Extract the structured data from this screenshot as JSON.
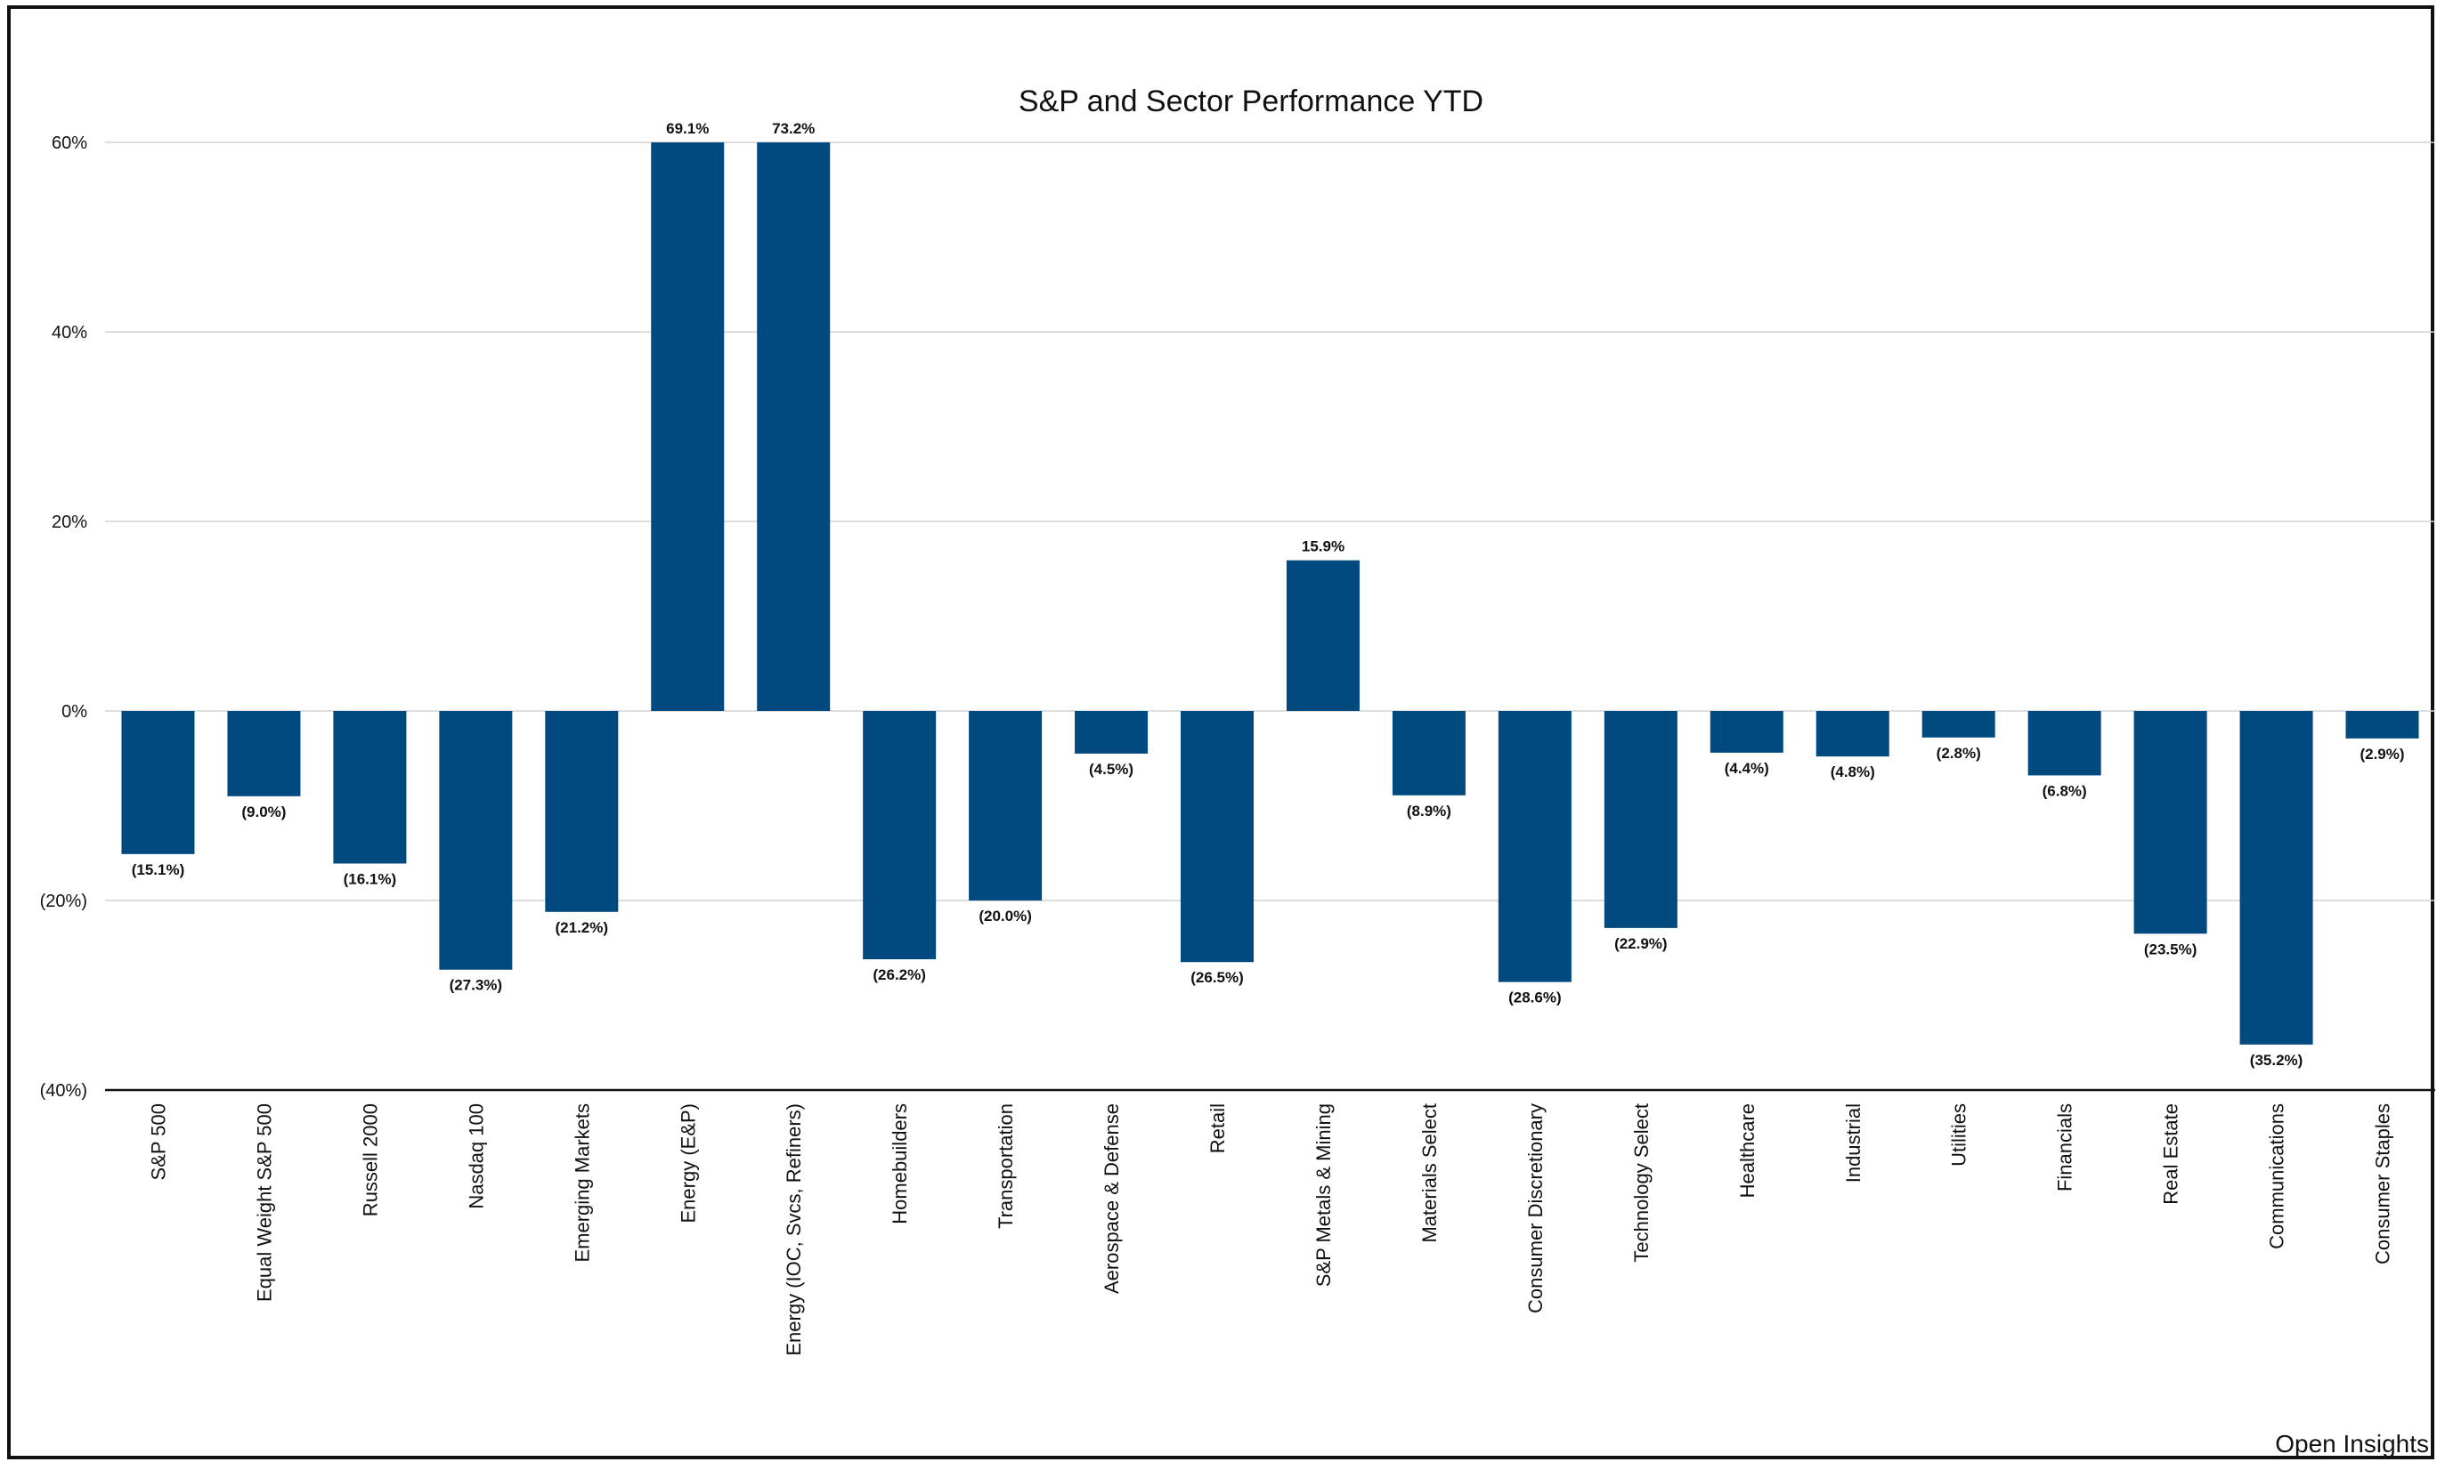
{
  "chart_data": {
    "type": "bar",
    "title": "S&P and Sector Performance YTD",
    "xlabel": "",
    "ylabel": "",
    "ylim": [
      -40,
      60
    ],
    "yticks": [
      60,
      40,
      20,
      0,
      -20,
      -40
    ],
    "ytick_labels": [
      "60%",
      "40%",
      "20%",
      "0%",
      "(20%)",
      "(40%)"
    ],
    "grid": true,
    "bar_color": "#004a7f",
    "categories": [
      "S&P 500",
      "Equal Weight S&P 500",
      "Russell 2000",
      "Nasdaq 100",
      "Emerging Markets",
      "Energy (E&P)",
      "Energy (IOC, Svcs, Refiners)",
      "Homebuilders",
      "Transportation",
      "Aerospace & Defense",
      "Retail",
      "S&P Metals & Mining",
      "Materials Select",
      "Consumer Discretionary",
      "Technology Select",
      "Healthcare",
      "Industrial",
      "Utilities",
      "Financials",
      "Real Estate",
      "Communications",
      "Consumer Staples"
    ],
    "values": [
      -15.1,
      -9.0,
      -16.1,
      -27.3,
      -21.2,
      69.1,
      73.2,
      -26.2,
      -20.0,
      -4.5,
      -26.5,
      15.9,
      -8.9,
      -28.6,
      -22.9,
      -4.4,
      -4.8,
      -2.8,
      -6.8,
      -23.5,
      -35.2,
      -2.9
    ],
    "data_labels": [
      "(15.1%)",
      "(9.0%)",
      "(16.1%)",
      "(27.3%)",
      "(21.2%)",
      "69.1%",
      "73.2%",
      "(26.2%)",
      "(20.0%)",
      "(4.5%)",
      "(26.5%)",
      "15.9%",
      "(8.9%)",
      "(28.6%)",
      "(22.9%)",
      "(4.4%)",
      "(4.8%)",
      "(2.8%)",
      "(6.8%)",
      "(23.5%)",
      "(35.2%)",
      "(2.9%)"
    ]
  },
  "credit": "Open Insights"
}
